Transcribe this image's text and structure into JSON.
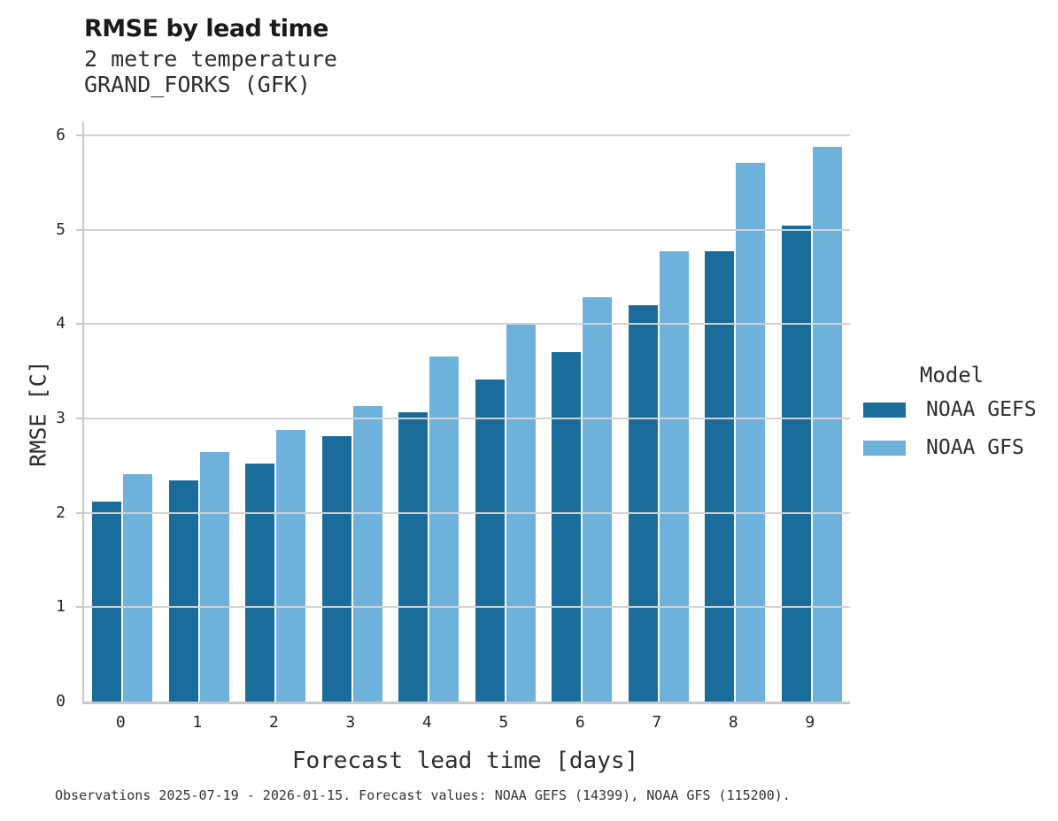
{
  "header": {
    "title": "RMSE by lead time",
    "subtitle_variable": "2 metre temperature",
    "subtitle_location": "GRAND_FORKS (GFK)"
  },
  "chart_data": {
    "type": "bar",
    "title": "RMSE by lead time",
    "subtitle": [
      "2 metre temperature",
      "GRAND_FORKS (GFK)"
    ],
    "categories": [
      "0",
      "1",
      "2",
      "3",
      "4",
      "5",
      "6",
      "7",
      "8",
      "9"
    ],
    "series": [
      {
        "name": "NOAA GEFS",
        "color": "#1a6c9b",
        "values": [
          2.12,
          2.34,
          2.52,
          2.81,
          3.07,
          3.41,
          3.7,
          4.2,
          4.77,
          5.04
        ]
      },
      {
        "name": "NOAA GFS",
        "color": "#6eb1da",
        "values": [
          2.41,
          2.64,
          2.88,
          3.13,
          3.66,
          4.0,
          4.28,
          4.77,
          5.71,
          5.88
        ]
      }
    ],
    "xlabel": "Forecast lead time [days]",
    "ylabel": "RMSE [C]",
    "ylim": [
      0,
      6.14
    ],
    "yticks": [
      0,
      1,
      2,
      3,
      4,
      5,
      6
    ],
    "grid": "horizontal",
    "legend_title": "Model",
    "legend_position": "right"
  },
  "axes": {
    "xlabel": "Forecast lead time [days]",
    "ylabel": "RMSE [C]",
    "ytick_labels": [
      "0",
      "1",
      "2",
      "3",
      "4",
      "5",
      "6"
    ],
    "xtick_labels": [
      "0",
      "1",
      "2",
      "3",
      "4",
      "5",
      "6",
      "7",
      "8",
      "9"
    ]
  },
  "legend": {
    "title": "Model",
    "items": [
      {
        "label": "NOAA GEFS",
        "color": "#1a6c9b"
      },
      {
        "label": "NOAA GFS",
        "color": "#6eb1da"
      }
    ]
  },
  "caption": "Observations 2025-07-19 - 2026-01-15. Forecast values: NOAA GEFS (14399), NOAA GFS (115200).",
  "colors": {
    "gefs_bar": "#1a6c9b",
    "gfs_bar": "#6eb1da",
    "gridline": "#d2d2d2",
    "axis": "#c9c9c9",
    "text_primary": "#1a1a1a",
    "text_secondary": "#2e2e2e"
  }
}
